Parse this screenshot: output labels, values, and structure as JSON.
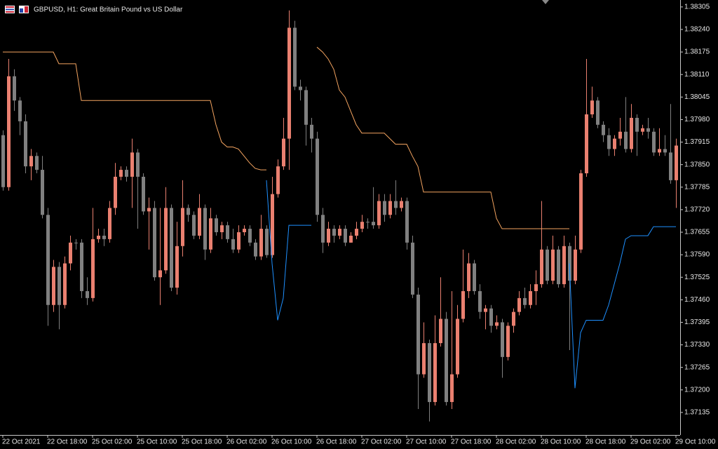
{
  "chart_data": {
    "type": "candlestick",
    "title": "GBPUSD, H1: Great Britain Pound vs US Dollar",
    "categories": [
      "22 Oct 2021",
      null,
      null,
      null,
      null,
      null,
      null,
      null,
      "22 Oct 18:00",
      null,
      null,
      null,
      null,
      null,
      null,
      null,
      "25 Oct 02:00",
      null,
      null,
      null,
      null,
      null,
      null,
      null,
      "25 Oct 10:00",
      null,
      null,
      null,
      null,
      null,
      null,
      null,
      "25 Oct 18:00",
      null,
      null,
      null,
      null,
      null,
      null,
      null,
      "26 Oct 02:00",
      null,
      null,
      null,
      null,
      null,
      null,
      null,
      "26 Oct 10:00",
      null,
      null,
      null,
      null,
      null,
      null,
      null,
      "26 Oct 18:00",
      null,
      null,
      null,
      null,
      null,
      null,
      null,
      "27 Oct 02:00",
      null,
      null,
      null,
      null,
      null,
      null,
      null,
      "27 Oct 10:00",
      null,
      null,
      null,
      null,
      null,
      null,
      null,
      "27 Oct 18:00",
      null,
      null,
      null,
      null,
      null,
      null,
      null,
      "28 Oct 02:00",
      null,
      null,
      null,
      null,
      null,
      null,
      null,
      "28 Oct 10:00",
      null,
      null,
      null,
      null,
      null,
      null,
      null,
      "28 Oct 18:00",
      null,
      null,
      null,
      null,
      null,
      null,
      null,
      "29 Oct 02:00",
      null,
      null,
      null,
      null,
      null,
      null,
      null,
      "29 Oct 10:00"
    ],
    "open": [
      1.37935,
      1.37785,
      1.38105,
      1.38035,
      1.37975,
      1.37845,
      1.37875,
      1.37835,
      1.37705,
      1.37445,
      1.37555,
      1.37445,
      1.37565,
      1.37625,
      1.37625,
      1.37485,
      1.37465,
      1.37635,
      1.37645,
      1.37635,
      1.37725,
      1.37815,
      1.37835,
      1.37815,
      1.37885,
      1.37815,
      1.37715,
      1.37725,
      1.37525,
      1.37545,
      1.37725,
      1.37495,
      1.37615,
      1.37725,
      1.37705,
      1.37645,
      1.37725,
      1.37605,
      1.37695,
      1.37655,
      1.37675,
      1.37635,
      1.37605,
      1.37655,
      1.37665,
      1.37625,
      1.37585,
      1.37665,
      1.37589,
      1.37765,
      1.37845,
      1.37925,
      1.38245,
      1.38075,
      1.38065,
      1.37965,
      1.37925,
      1.37705,
      1.37625,
      1.37665,
      1.37645,
      1.37665,
      1.37625,
      1.37645,
      1.37665,
      1.37685,
      1.37685,
      1.37675,
      1.37745,
      1.37705,
      1.37745,
      1.37725,
      1.37745,
      1.37625,
      1.37475,
      1.37245,
      1.37335,
      1.37165,
      1.37335,
      1.37405,
      1.37165,
      1.37245,
      1.37405,
      1.37485,
      1.37565,
      1.37485,
      1.37425,
      1.37435,
      1.37385,
      1.37395,
      1.37295,
      1.37385,
      1.37425,
      1.37465,
      1.37445,
      1.37485,
      1.37505,
      1.37605,
      1.37515,
      1.37605,
      1.37505,
      1.37615,
      1.37515,
      1.37605,
      1.37825,
      1.37995,
      1.38035,
      1.37965,
      1.37935,
      1.37895,
      1.37925,
      1.37945,
      1.37895,
      1.37985,
      1.37945,
      1.37955,
      1.37945,
      1.37885,
      1.37895,
      1.37885,
      1.37805
    ],
    "high": [
      1.37949,
      1.38155,
      1.38125,
      1.38045,
      1.37995,
      1.37895,
      1.37885,
      1.37875,
      1.37725,
      1.37575,
      1.37569,
      1.37585,
      1.37645,
      1.37635,
      1.37635,
      1.37525,
      1.37725,
      1.37665,
      1.37665,
      1.37745,
      1.37855,
      1.37845,
      1.37845,
      1.37925,
      1.37895,
      1.37825,
      1.37755,
      1.37745,
      1.37725,
      1.37785,
      1.37735,
      1.37685,
      1.37805,
      1.37735,
      1.37715,
      1.37765,
      1.37735,
      1.37725,
      1.37705,
      1.37685,
      1.37685,
      1.37665,
      1.37675,
      1.37675,
      1.37675,
      1.37635,
      1.37705,
      1.37675,
      1.37815,
      1.37865,
      1.37985,
      1.38295,
      1.38265,
      1.38095,
      1.38075,
      1.37985,
      1.37945,
      1.37725,
      1.37685,
      1.37675,
      1.37675,
      1.37675,
      1.37655,
      1.37685,
      1.37705,
      1.37695,
      1.37785,
      1.37765,
      1.37765,
      1.37765,
      1.37805,
      1.37755,
      1.37755,
      1.37645,
      1.37495,
      1.37395,
      1.37345,
      1.37415,
      1.37525,
      1.37425,
      1.37485,
      1.37445,
      1.37605,
      1.37595,
      1.37575,
      1.37505,
      1.37445,
      1.37445,
      1.37415,
      1.37405,
      1.37395,
      1.37435,
      1.37485,
      1.37495,
      1.37505,
      1.37545,
      1.37745,
      1.37615,
      1.37645,
      1.37615,
      1.37645,
      1.37625,
      1.37645,
      1.37835,
      1.38155,
      1.38075,
      1.38045,
      1.37975,
      1.37955,
      1.37935,
      1.37985,
      1.38045,
      1.38025,
      1.37995,
      1.37965,
      1.37985,
      1.37955,
      1.37955,
      1.37935,
      1.38025,
      1.37925
    ],
    "low": [
      1.37775,
      1.37775,
      1.38005,
      1.37935,
      1.37825,
      1.37805,
      1.37825,
      1.37695,
      1.37385,
      1.37425,
      1.37375,
      1.37435,
      1.37545,
      1.37605,
      1.37465,
      1.37445,
      1.37455,
      1.37625,
      1.37615,
      1.37625,
      1.37705,
      1.37805,
      1.37801,
      1.37725,
      1.37665,
      1.37705,
      1.37605,
      1.37515,
      1.37445,
      1.37535,
      1.37485,
      1.37475,
      1.37585,
      1.37685,
      1.37635,
      1.37635,
      1.37575,
      1.37595,
      1.37645,
      1.37635,
      1.37625,
      1.37595,
      1.37595,
      1.37645,
      1.37615,
      1.37575,
      1.37575,
      1.37581,
      1.37581,
      1.37755,
      1.37835,
      1.37835,
      1.38065,
      1.38035,
      1.37905,
      1.37885,
      1.37685,
      1.37595,
      1.37615,
      1.37625,
      1.37635,
      1.37615,
      1.37625,
      1.37635,
      1.37655,
      1.37665,
      1.37665,
      1.37665,
      1.37685,
      1.37695,
      1.37705,
      1.37715,
      1.37605,
      1.37465,
      1.37145,
      1.37235,
      1.37109,
      1.37155,
      1.37325,
      1.37155,
      1.37145,
      1.37235,
      1.37395,
      1.37465,
      1.37475,
      1.37405,
      1.37375,
      1.37365,
      1.37375,
      1.37235,
      1.37285,
      1.37365,
      1.37415,
      1.37435,
      1.37435,
      1.37445,
      1.37495,
      1.37505,
      1.37505,
      1.37495,
      1.37495,
      1.37315,
      1.37505,
      1.37595,
      1.37815,
      1.37985,
      1.37955,
      1.37915,
      1.37875,
      1.37875,
      1.37905,
      1.37885,
      1.37885,
      1.37875,
      1.37935,
      1.37925,
      1.37875,
      1.37875,
      1.37875,
      1.37795,
      1.37725
    ],
    "close": [
      1.37785,
      1.38105,
      1.38035,
      1.37975,
      1.37845,
      1.37875,
      1.37835,
      1.37705,
      1.37445,
      1.37555,
      1.37445,
      1.37565,
      1.37625,
      1.37625,
      1.37485,
      1.37465,
      1.37635,
      1.37645,
      1.37635,
      1.37725,
      1.37815,
      1.37835,
      1.37815,
      1.37885,
      1.37815,
      1.37715,
      1.37725,
      1.37525,
      1.37545,
      1.37725,
      1.37495,
      1.37615,
      1.37725,
      1.37705,
      1.37645,
      1.37725,
      1.37605,
      1.37695,
      1.37655,
      1.37675,
      1.37635,
      1.37605,
      1.37655,
      1.37665,
      1.37625,
      1.37585,
      1.37665,
      1.37589,
      1.37765,
      1.37845,
      1.37925,
      1.38245,
      1.38075,
      1.38065,
      1.37965,
      1.37925,
      1.37705,
      1.37625,
      1.37665,
      1.37645,
      1.37665,
      1.37625,
      1.37645,
      1.37665,
      1.37685,
      1.37685,
      1.37675,
      1.37745,
      1.37705,
      1.37745,
      1.37725,
      1.37745,
      1.37625,
      1.37475,
      1.37245,
      1.37335,
      1.37165,
      1.37335,
      1.37405,
      1.37165,
      1.37245,
      1.37405,
      1.37485,
      1.37565,
      1.37485,
      1.37425,
      1.37435,
      1.37385,
      1.37395,
      1.37295,
      1.37385,
      1.37425,
      1.37465,
      1.37445,
      1.37485,
      1.37505,
      1.37605,
      1.37515,
      1.37605,
      1.37505,
      1.37615,
      1.37515,
      1.37605,
      1.37825,
      1.37995,
      1.38035,
      1.37965,
      1.37935,
      1.37895,
      1.37925,
      1.37945,
      1.37895,
      1.37985,
      1.37945,
      1.37955,
      1.37945,
      1.37885,
      1.37895,
      1.37885,
      1.37805,
      1.37905
    ],
    "up_color": "#ea8070",
    "down_color": "#808080",
    "lines": [
      {
        "color": "#f4a460",
        "values": [
          1.38175,
          1.38175,
          1.38175,
          1.38175,
          1.38175,
          1.38175,
          1.38175,
          1.38175,
          1.38175,
          1.38175,
          1.38141,
          1.38141,
          1.38141,
          1.38141,
          1.38035,
          1.38035,
          1.38035,
          1.38035,
          1.38035,
          1.38035,
          1.38035,
          1.38035,
          1.38035,
          1.38035,
          1.38035,
          1.38035,
          1.38035,
          1.38035,
          1.38035,
          1.38035,
          1.38035,
          1.38035,
          1.38035,
          1.38035,
          1.38035,
          1.38035,
          1.38035,
          1.38035,
          1.37965,
          1.37915,
          1.37901,
          1.37901,
          1.37895,
          1.37875,
          1.37855,
          1.37839,
          1.37835,
          1.37835,
          null,
          null,
          null,
          null,
          null,
          null,
          null,
          null,
          1.38189,
          1.38175,
          1.38155,
          1.38125,
          1.38065,
          1.38045,
          1.38005,
          1.37965,
          1.37941,
          1.37941,
          1.37941,
          1.37941,
          1.37941,
          1.37925,
          1.37909,
          1.37909,
          1.37909,
          1.37875,
          1.37845,
          1.37771,
          1.37771,
          1.37771,
          1.37771,
          1.37771,
          1.37771,
          1.37771,
          1.37771,
          1.37771,
          1.37771,
          1.37771,
          1.37771,
          1.37771,
          1.37695,
          1.37665,
          1.37665,
          1.37665,
          1.37665,
          1.37665,
          1.37665,
          1.37665,
          1.37665,
          1.37665,
          1.37665,
          1.37665,
          1.37665,
          1.37665,
          null,
          null,
          null,
          null,
          null,
          null,
          null,
          null,
          null,
          null,
          null,
          null,
          null,
          null,
          null,
          null,
          null,
          null,
          null
        ]
      },
      {
        "color": "#1e90ff",
        "values": [
          null,
          null,
          null,
          null,
          null,
          null,
          null,
          null,
          null,
          null,
          null,
          null,
          null,
          null,
          null,
          null,
          null,
          null,
          null,
          null,
          null,
          null,
          null,
          null,
          null,
          null,
          null,
          null,
          null,
          null,
          null,
          null,
          null,
          null,
          null,
          null,
          null,
          null,
          null,
          null,
          null,
          null,
          null,
          null,
          null,
          null,
          null,
          1.37805,
          1.37565,
          1.37401,
          1.37465,
          1.37675,
          1.37675,
          1.37675,
          1.37675,
          1.37675,
          null,
          null,
          null,
          null,
          null,
          null,
          null,
          null,
          null,
          null,
          null,
          null,
          null,
          null,
          null,
          null,
          null,
          null,
          null,
          null,
          null,
          null,
          null,
          null,
          null,
          null,
          null,
          null,
          null,
          null,
          null,
          null,
          null,
          null,
          null,
          null,
          null,
          null,
          null,
          null,
          null,
          null,
          null,
          null,
          null,
          1.37565,
          1.37205,
          1.37365,
          1.37401,
          1.37401,
          1.37401,
          1.37401,
          1.37445,
          1.37505,
          1.37565,
          1.37635,
          1.37645,
          1.37645,
          1.37645,
          1.37645,
          1.37671,
          1.37671,
          1.37671,
          1.37671,
          1.37671
        ]
      }
    ],
    "ylim": [
      1.3707,
      1.38325
    ],
    "yticks": [
      1.38305,
      {
        "value": 1.3824,
        "label": "1.38240"
      },
      1.38175,
      {
        "value": 1.3811,
        "label": "1.38110"
      },
      1.38045,
      {
        "value": 1.3798,
        "label": "1.37980"
      },
      1.37915,
      {
        "value": 1.3785,
        "label": "1.37850"
      },
      1.37785,
      {
        "value": 1.3772,
        "label": "1.37720"
      },
      1.37655,
      {
        "value": 1.3759,
        "label": "1.37590"
      },
      1.37525,
      {
        "value": 1.3746,
        "label": "1.37460"
      },
      1.37395,
      {
        "value": 1.3733,
        "label": "1.37330"
      },
      1.37265,
      {
        "value": 1.372,
        "label": "1.37200"
      },
      1.37135
    ]
  }
}
